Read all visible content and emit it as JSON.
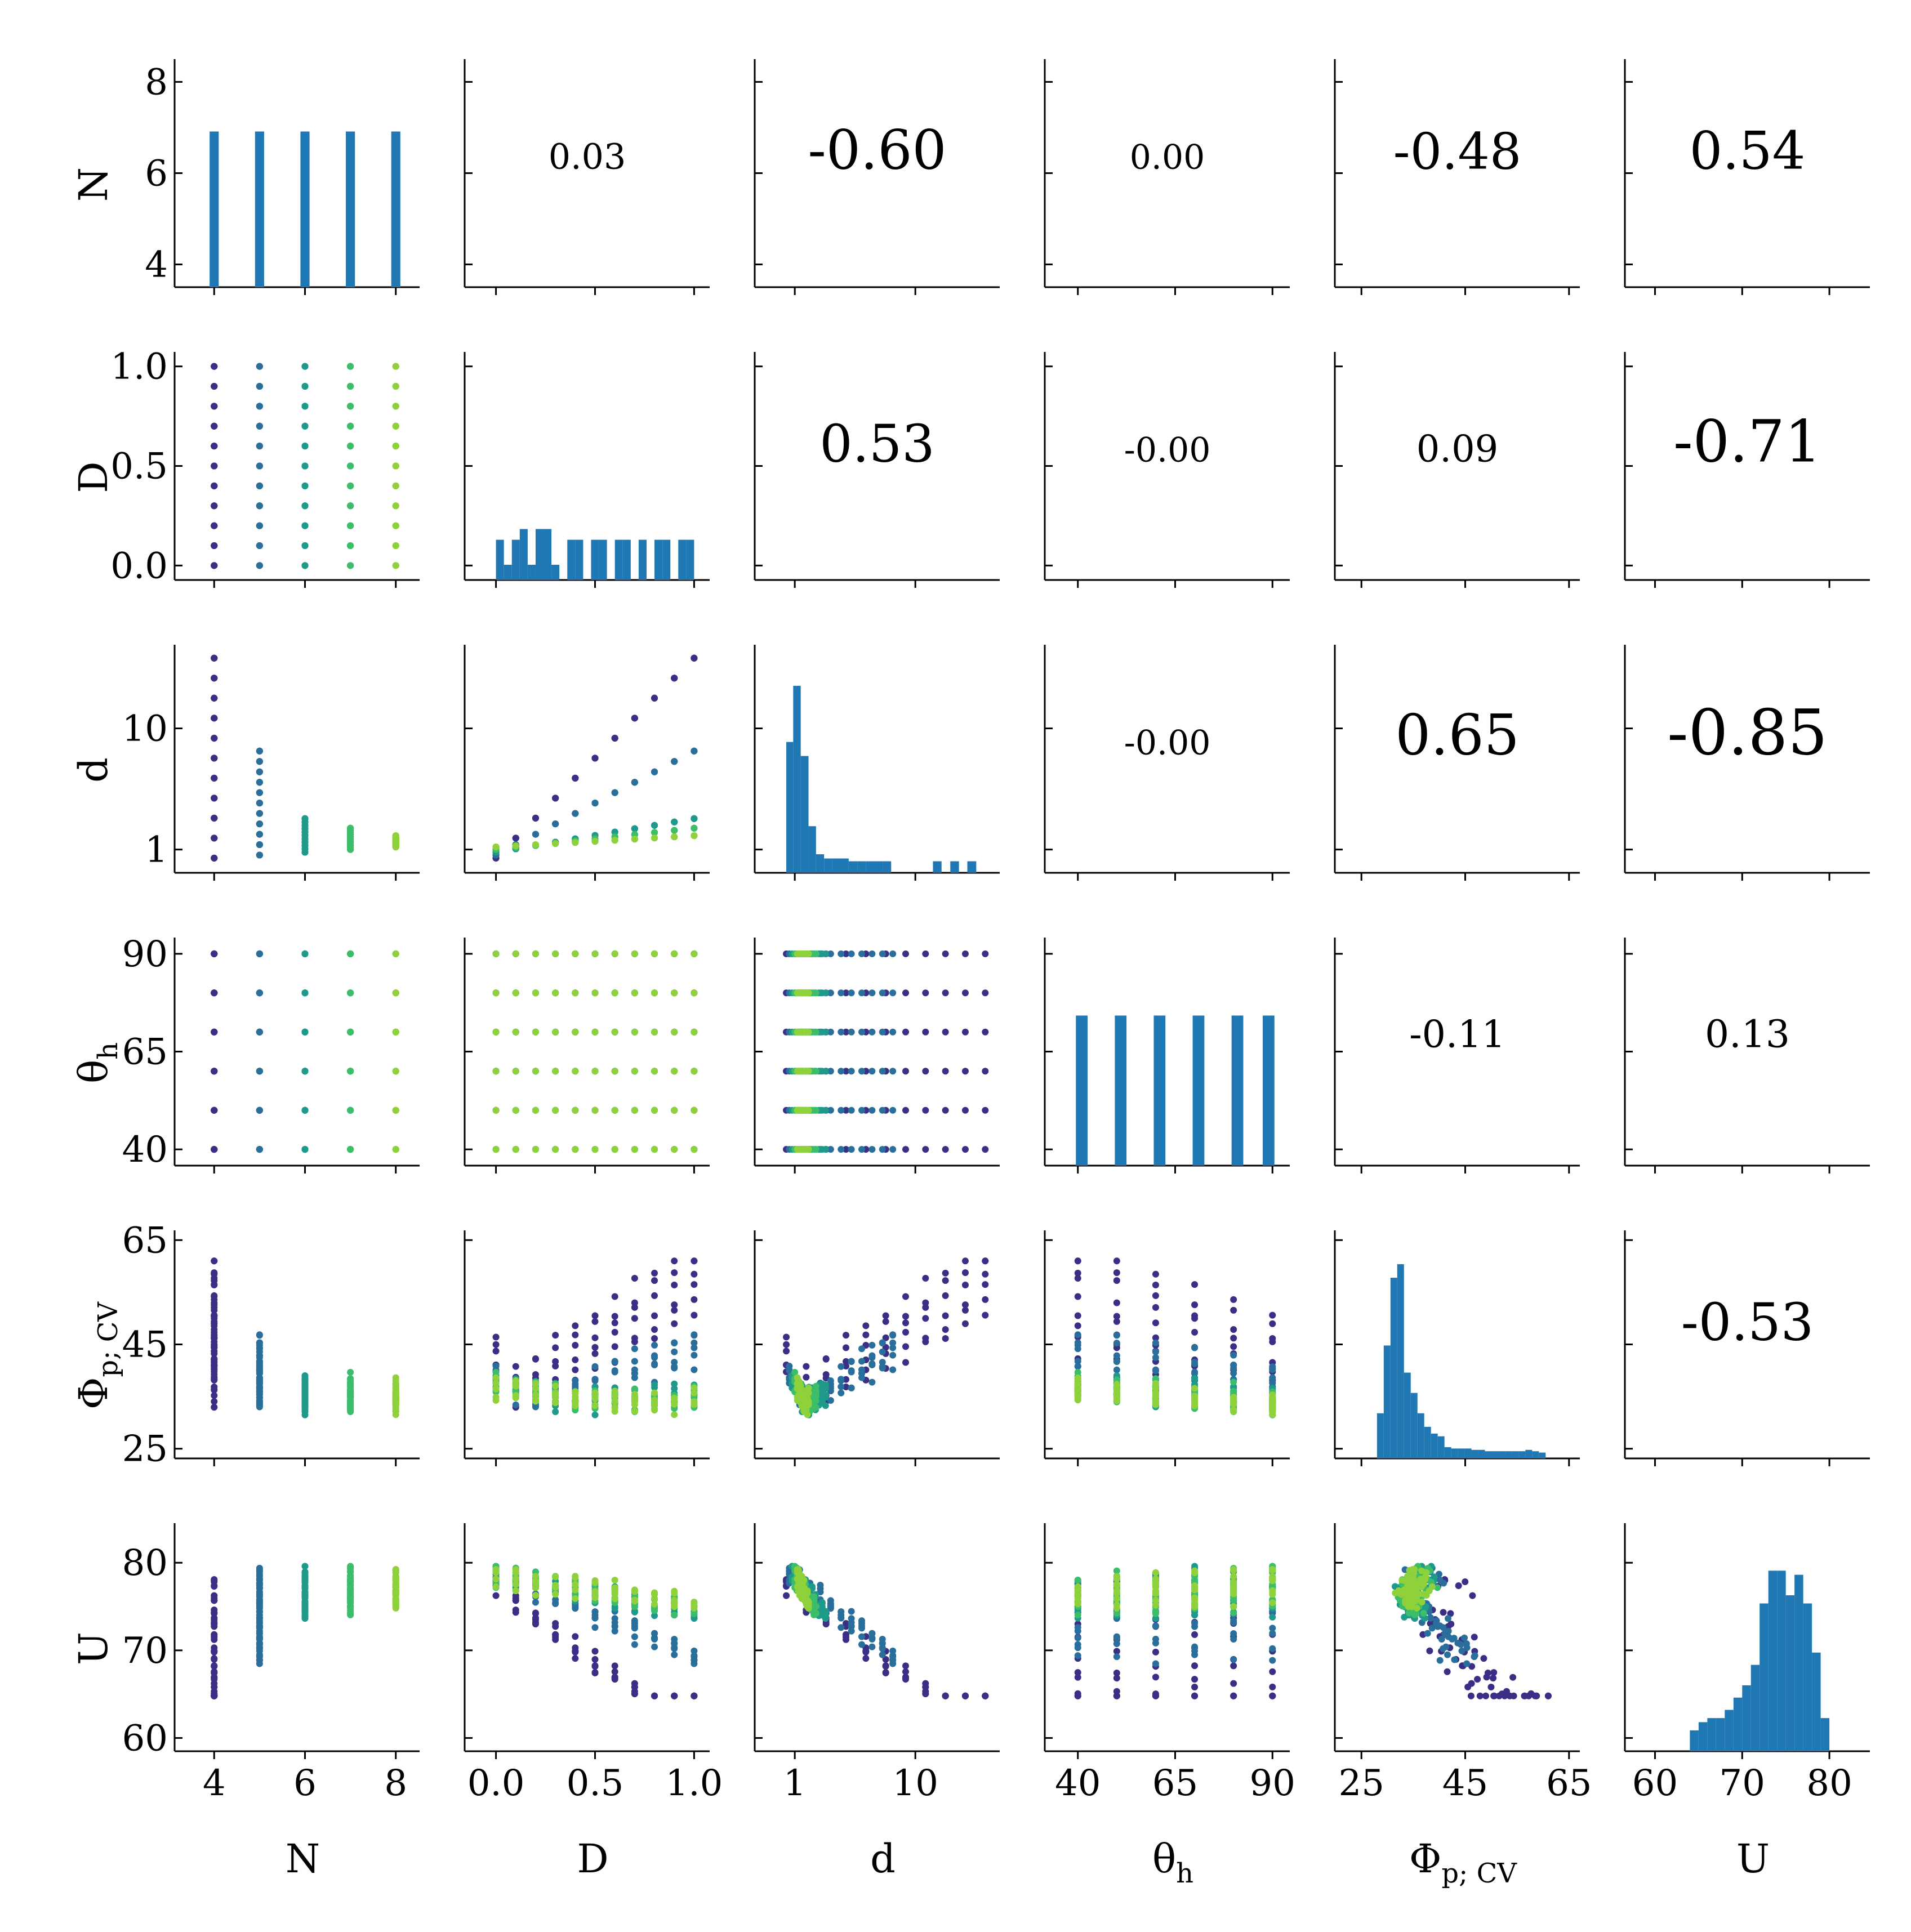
{
  "chart_data": {
    "type": "pairplot",
    "title": "",
    "variables": [
      {
        "key": "N",
        "label": "N",
        "sub": "",
        "ticks": [
          "4",
          "6",
          "8"
        ],
        "tick_values": [
          4,
          6,
          8
        ],
        "range": [
          3.6,
          8.4
        ]
      },
      {
        "key": "D",
        "label": "D",
        "sub": "",
        "ticks": [
          "0.0",
          "0.5",
          "1.0"
        ],
        "tick_values": [
          0.0,
          0.5,
          1.0
        ],
        "range": [
          -0.05,
          1.05
        ]
      },
      {
        "key": "d",
        "label": "d",
        "sub": "",
        "ticks": [
          "1",
          "10"
        ],
        "tick_values": [
          1,
          10
        ],
        "range": [
          0.7,
          45
        ],
        "scale": "log"
      },
      {
        "key": "theta_h",
        "label": "θ",
        "sub": "h",
        "ticks": [
          "40",
          "65",
          "90"
        ],
        "tick_values": [
          40,
          65,
          90
        ],
        "range": [
          37,
          93
        ]
      },
      {
        "key": "Phi_p_CV",
        "label": "Φ",
        "sub": "p; CV",
        "ticks": [
          "25",
          "45",
          "65"
        ],
        "tick_values": [
          25,
          45,
          65
        ],
        "range": [
          24,
          66
        ]
      },
      {
        "key": "U",
        "label": "U",
        "sub": "",
        "ticks": [
          "60",
          "70",
          "80"
        ],
        "tick_values": [
          60,
          70,
          80
        ],
        "range": [
          59,
          84
        ]
      }
    ],
    "correlations": [
      {
        "row": "N",
        "col": "D",
        "value": "0.03"
      },
      {
        "row": "N",
        "col": "d",
        "value": "-0.60"
      },
      {
        "row": "N",
        "col": "theta_h",
        "value": "0.00"
      },
      {
        "row": "N",
        "col": "Phi_p_CV",
        "value": "-0.48"
      },
      {
        "row": "N",
        "col": "U",
        "value": "0.54"
      },
      {
        "row": "D",
        "col": "d",
        "value": "0.53"
      },
      {
        "row": "D",
        "col": "theta_h",
        "value": "-0.00"
      },
      {
        "row": "D",
        "col": "Phi_p_CV",
        "value": "0.09"
      },
      {
        "row": "D",
        "col": "U",
        "value": "-0.71"
      },
      {
        "row": "d",
        "col": "theta_h",
        "value": "-0.00"
      },
      {
        "row": "d",
        "col": "Phi_p_CV",
        "value": "0.65"
      },
      {
        "row": "d",
        "col": "U",
        "value": "-0.85"
      },
      {
        "row": "theta_h",
        "col": "Phi_p_CV",
        "value": "-0.11"
      },
      {
        "row": "theta_h",
        "col": "U",
        "value": "0.13"
      },
      {
        "row": "Phi_p_CV",
        "col": "U",
        "value": "-0.53"
      }
    ],
    "histograms": {
      "N": {
        "bins": [
          3.9,
          4.1,
          4.9,
          5.1,
          5.9,
          6.1,
          6.9,
          7.1,
          7.9,
          8.1
        ],
        "counts": [
          1,
          0,
          1,
          0,
          1,
          0,
          1,
          0,
          1
        ],
        "max": 1.3
      },
      "D": {
        "bins": [
          0,
          0.04,
          0.08,
          0.12,
          0.16,
          0.2,
          0.24,
          0.28,
          0.32,
          0.36,
          0.4,
          0.44,
          0.48,
          0.52,
          0.56,
          0.6,
          0.64,
          0.68,
          0.72,
          0.76,
          0.8,
          0.84,
          0.88,
          0.92,
          0.96,
          1.0
        ],
        "counts": [
          1,
          0.3,
          1,
          1.3,
          0.3,
          1.3,
          1.3,
          0.3,
          0,
          1,
          1,
          0,
          1,
          1,
          0,
          1,
          1,
          0,
          1,
          0,
          1,
          1,
          0,
          1,
          1
        ],
        "max": 5.5
      },
      "d": {
        "bins": [
          0.85,
          0.97,
          1.12,
          1.3,
          1.5,
          1.75,
          2.05,
          2.4,
          2.8,
          3.3,
          3.9,
          4.6,
          5.4,
          6.3,
          7.4,
          8.7,
          10.2,
          12,
          14,
          16.5,
          19.5,
          23,
          27,
          32,
          37
        ],
        "counts": [
          9,
          13,
          8,
          3,
          1,
          0.7,
          0.7,
          0.7,
          0.5,
          0.5,
          0.5,
          0.5,
          0.5,
          0,
          0,
          0,
          0,
          0,
          0.5,
          0,
          0.5,
          0,
          0.5,
          0
        ],
        "max": 14
      },
      "theta_h": {
        "bins": [
          39.5,
          42.5,
          49.5,
          52.5,
          59.5,
          62.5,
          69.5,
          72.5,
          79.5,
          82.5,
          87.5,
          90.5
        ],
        "counts": [
          1,
          0,
          1,
          0,
          1,
          0,
          1,
          0,
          1,
          0,
          1
        ],
        "max": 1.35
      },
      "Phi_p_CV": {
        "bins": [
          28,
          29.3,
          30.6,
          31.9,
          33.2,
          34.5,
          35.8,
          37.1,
          38.4,
          39.7,
          41,
          42.3,
          43.6,
          44.9,
          46.2,
          47.5,
          48.8,
          50.1,
          51.4,
          52.7,
          54,
          55.3,
          56.6,
          57.9,
          59.2,
          60.5
        ],
        "counts": [
          3,
          8,
          13,
          14,
          6,
          4.5,
          3,
          2,
          1.5,
          1.3,
          0.5,
          0.4,
          0.4,
          0.4,
          0.3,
          0.3,
          0.2,
          0.2,
          0.2,
          0.2,
          0.2,
          0.2,
          0.3,
          0.2,
          0.1
        ],
        "max": 14.5
      },
      "U": {
        "bins": [
          64,
          65,
          66,
          67,
          68,
          69,
          70,
          71,
          72,
          73,
          74,
          75,
          76,
          77,
          78,
          79,
          80
        ],
        "counts": [
          0.4,
          0.6,
          0.7,
          0.7,
          0.9,
          1.2,
          1.5,
          2.0,
          3.5,
          4.3,
          4.3,
          3.7,
          4.2,
          3.5,
          2.3,
          0.7
        ],
        "max": 4.8
      }
    },
    "sample_design": {
      "N_levels": [
        4,
        5,
        6,
        7,
        8
      ],
      "D_levels": [
        0,
        0.1,
        0.2,
        0.3,
        0.4,
        0.5,
        0.6,
        0.7,
        0.8,
        0.9,
        1.0
      ],
      "theta_h_levels": [
        40,
        50,
        60,
        70,
        80,
        90
      ],
      "colormap": [
        "#3b2f85",
        "#2a6f9b",
        "#1f9a8a",
        "#3cbd6a",
        "#8fd13a"
      ]
    }
  }
}
